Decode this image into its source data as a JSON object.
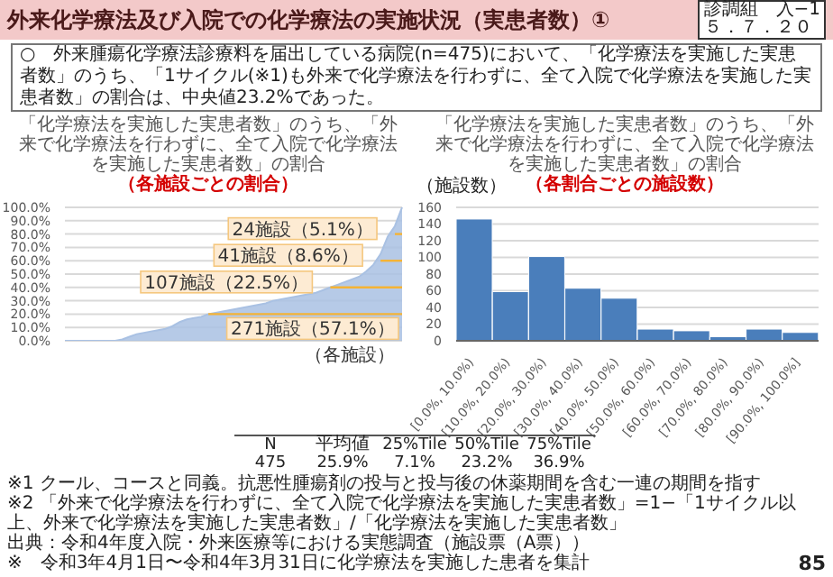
{
  "chart_data": [
    {
      "type": "area",
      "title": "「化学療法を実施した実患者数」のうち、「外来で化学療法を行わずに、全て入院で化学療法を実施した実患者数」の割合",
      "subtitle": "（各施設ごとの割合）",
      "xlabel": "（各施設）",
      "color": "#a9c1e3",
      "categories": [
        null,
        null,
        null,
        null,
        null,
        null,
        null,
        null,
        null,
        null,
        null,
        null,
        null,
        null,
        null,
        null,
        null,
        null,
        null,
        null,
        null,
        null,
        null,
        null,
        null,
        null,
        null,
        null,
        null,
        null,
        null,
        null,
        null,
        null,
        null,
        null,
        null,
        null,
        null,
        null,
        null,
        null,
        null,
        null,
        null,
        null,
        null,
        null
      ],
      "values": [
        0,
        0,
        0,
        0,
        0,
        0,
        0,
        0,
        1,
        3,
        5,
        6,
        7,
        8,
        9,
        11,
        14,
        16,
        17,
        18,
        20,
        21,
        22,
        23,
        24,
        25,
        26,
        27,
        28,
        30,
        31,
        32,
        33,
        34,
        35,
        36,
        38,
        40,
        42,
        44,
        46,
        48,
        52,
        57,
        65,
        78,
        86,
        100
      ],
      "ylim": [
        0,
        100
      ],
      "yticks": [
        {
          "value": 0,
          "label": "0.0%"
        },
        {
          "value": 10,
          "label": "10.0%"
        },
        {
          "value": 20,
          "label": "20.0%"
        },
        {
          "value": 30,
          "label": "30.0%"
        },
        {
          "value": 40,
          "label": "40.0%"
        },
        {
          "value": 50,
          "label": "50.0%"
        },
        {
          "value": 60,
          "label": "60.0%"
        },
        {
          "value": 70,
          "label": "70.0%"
        },
        {
          "value": 80,
          "label": "80.0%"
        },
        {
          "value": 90,
          "label": "90.0%"
        },
        {
          "value": 100,
          "label": "100.0%"
        }
      ],
      "grid": "y",
      "ref_lines": [
        {
          "axis": "y",
          "value": 80,
          "label": "24施設（5.1%）",
          "color": "#f5b335"
        },
        {
          "axis": "y",
          "value": 60,
          "label": "41施設（8.6%）",
          "color": "#f5b335"
        },
        {
          "axis": "y",
          "value": 40,
          "label": "107施設（22.5%）",
          "color": "#f5b335"
        },
        {
          "axis": "y",
          "value": 20,
          "label": "271施設（57.1%）",
          "color": "#f5b335"
        }
      ],
      "annotations": [
        "外来化学療法及び入院での化学療法の実施状況（実患者数）①",
        "診調組　入−1",
        "５．７．２０",
        "○　外来腫瘍化学療法診療料を届出している病院(n=475)において、「化学療法を実施した実患者数」のうち、「1サイクル(※1)も外来で化学療法を行わずに、全て入院で化学療法を実施した実患者数」の割合は、中央値23.2%であった。",
        "N",
        "平均値",
        "25%Tile",
        "50%Tile",
        "75%Tile",
        "475",
        "25.9%",
        "7.1%",
        "23.2%",
        "36.9%",
        "※1 クール、コースと同義。抗悪性腫瘍剤の投与と投与後の休薬期間を含む一連の期間を指す",
        "※2 「外来で化学療法を行わずに、全て入院で化学療法を実施した実患者数」=1−「1サイクル以上、外来で化学療法を実施した実患者数」/「化学療法を実施した実患者数」",
        "出典：令和4年度入院・外来医療等における実態調査（施設票（A票））",
        "※　令和3年4月1日〜令和4年3月31日に化学療法を実施した患者を集計",
        "85"
      ]
    },
    {
      "type": "bar",
      "title": "「化学療法を実施した実患者数」のうち、「外来で化学療法を行わずに、全て入院で化学療法を実施した実患者数」の割合",
      "subtitle": "（各割合ごとの施設数）",
      "ylabel": "（施設数）",
      "color": "#4a7ebb",
      "categories": [
        "[0.0%, 10.0%)",
        "[10.0%, 20.0%)",
        "[20.0%, 30.0%)",
        "[30.0%, 40.0%)",
        "[40.0%, 50.0%)",
        "[50.0%, 60.0%)",
        "[60.0%, 70.0%)",
        "[70.0%, 80.0%)",
        "[80.0%, 90.0%)",
        "[90.0%, 100.0%]"
      ],
      "values": [
        146,
        59,
        101,
        63,
        51,
        14,
        12,
        5,
        14,
        10
      ],
      "ylim": [
        0,
        160
      ],
      "yticks": [
        0,
        20,
        40,
        60,
        80,
        100,
        120,
        140,
        160
      ],
      "grid": "y"
    }
  ]
}
